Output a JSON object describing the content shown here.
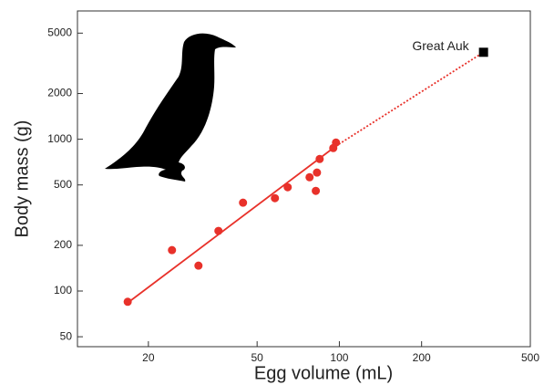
{
  "chart_data": {
    "type": "scatter",
    "x_label": "Egg volume (mL)",
    "y_label": "Body mass (g)",
    "xscale": "log",
    "yscale": "log",
    "xlim": [
      11,
      500
    ],
    "ylim": [
      43,
      7000
    ],
    "xticks": [
      20,
      50,
      100,
      200,
      500
    ],
    "yticks": [
      50,
      100,
      200,
      500,
      1000,
      2000,
      5000
    ],
    "series": [
      {
        "type": "scatter",
        "marker": "circle",
        "color": "#e8312a",
        "x": [
          16.8,
          24.4,
          30.5,
          36.1,
          44.4,
          58.1,
          64.7,
          77.8,
          82.8,
          82,
          84.7,
          95,
          97.2
        ],
        "values": [
          85,
          186,
          147,
          249,
          382,
          409,
          483,
          562,
          603,
          457,
          741,
          875,
          951
        ]
      },
      {
        "type": "scatter",
        "marker": "square",
        "color": "#000000",
        "name": "Great Auk",
        "x": [
          337
        ],
        "values": [
          3740
        ]
      },
      {
        "type": "line",
        "color": "#e8312a",
        "dash": false,
        "x": [
          17,
          97
        ],
        "values": [
          85,
          900
        ]
      },
      {
        "type": "line",
        "color": "#e8312a",
        "dash": true,
        "x": [
          97,
          337
        ],
        "values": [
          900,
          3740
        ]
      }
    ]
  }
}
